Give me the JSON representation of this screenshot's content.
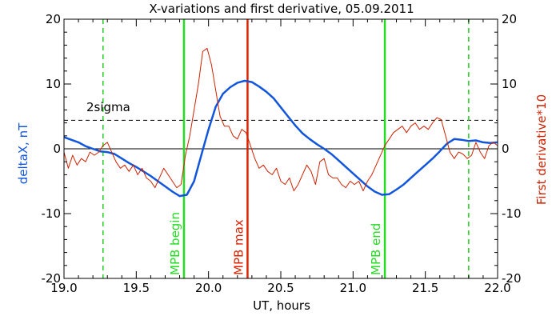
{
  "chart_data": {
    "type": "line",
    "title": "X-variations and first derivative, 05.09.2011",
    "xlabel": "UT, hours",
    "ylabel_left": "deltaX, nT",
    "ylabel_right": "First derivative*10",
    "xlim": [
      19.0,
      22.0
    ],
    "ylim_left": [
      -20,
      20
    ],
    "ylim_right": [
      -20,
      20
    ],
    "x_ticks": [
      19.0,
      19.5,
      20.0,
      20.5,
      21.0,
      21.5,
      22.0
    ],
    "x_tick_labels": [
      "19.0",
      "19.5",
      "20.0",
      "20.5",
      "21.0",
      "21.5",
      "22.0"
    ],
    "y_ticks": [
      -20,
      -10,
      0,
      10,
      20
    ],
    "y_tick_labels": [
      "-20",
      "-10",
      "0",
      "10",
      "20"
    ],
    "threshold": {
      "label": "2sigma",
      "value": 4.4
    },
    "vertical_markers": [
      {
        "x": 19.27,
        "color": "#22cc22",
        "style": "dashed",
        "label": ""
      },
      {
        "x": 19.83,
        "color": "#22dd22",
        "style": "solid",
        "label": "MPB begin"
      },
      {
        "x": 20.27,
        "color": "#dd2200",
        "style": "solid",
        "label": "MPB max"
      },
      {
        "x": 21.22,
        "color": "#22dd22",
        "style": "solid",
        "label": "MPB end"
      },
      {
        "x": 21.8,
        "color": "#22cc22",
        "style": "dashed",
        "label": ""
      }
    ],
    "series": [
      {
        "axis": "left",
        "color": "#1155dd",
        "x": [
          19.0,
          19.05,
          19.1,
          19.15,
          19.2,
          19.25,
          19.3,
          19.35,
          19.4,
          19.45,
          19.5,
          19.55,
          19.6,
          19.65,
          19.7,
          19.75,
          19.8,
          19.85,
          19.9,
          19.95,
          20.0,
          20.05,
          20.1,
          20.15,
          20.2,
          20.25,
          20.3,
          20.35,
          20.4,
          20.45,
          20.5,
          20.55,
          20.6,
          20.65,
          20.7,
          20.75,
          20.8,
          20.85,
          20.9,
          20.95,
          21.0,
          21.05,
          21.1,
          21.15,
          21.2,
          21.25,
          21.3,
          21.35,
          21.4,
          21.45,
          21.5,
          21.55,
          21.6,
          21.65,
          21.7,
          21.75,
          21.8,
          21.85,
          21.9,
          21.95,
          22.0
        ],
        "values": [
          1.8,
          1.4,
          1.0,
          0.4,
          0.0,
          -0.4,
          -0.5,
          -0.8,
          -1.5,
          -2.2,
          -2.8,
          -3.5,
          -4.2,
          -5.0,
          -5.8,
          -6.6,
          -7.3,
          -7.1,
          -5.0,
          -1.0,
          3.0,
          6.5,
          8.5,
          9.5,
          10.2,
          10.5,
          10.3,
          9.6,
          8.8,
          7.8,
          6.4,
          5.0,
          3.6,
          2.4,
          1.5,
          0.7,
          0.0,
          -0.8,
          -1.8,
          -2.8,
          -3.8,
          -4.8,
          -5.8,
          -6.6,
          -7.1,
          -7.0,
          -6.3,
          -5.5,
          -4.5,
          -3.5,
          -2.5,
          -1.5,
          -0.4,
          0.8,
          1.5,
          1.4,
          1.2,
          1.3,
          1.0,
          0.9,
          1.0
        ]
      },
      {
        "axis": "right",
        "color": "#cc2200",
        "x": [
          19.0,
          19.03,
          19.06,
          19.09,
          19.12,
          19.15,
          19.18,
          19.21,
          19.24,
          19.27,
          19.3,
          19.33,
          19.36,
          19.39,
          19.42,
          19.45,
          19.48,
          19.51,
          19.54,
          19.57,
          19.6,
          19.63,
          19.66,
          19.69,
          19.72,
          19.75,
          19.78,
          19.81,
          19.84,
          19.87,
          19.9,
          19.93,
          19.96,
          19.99,
          20.02,
          20.05,
          20.08,
          20.11,
          20.14,
          20.17,
          20.2,
          20.23,
          20.26,
          20.29,
          20.32,
          20.35,
          20.38,
          20.41,
          20.44,
          20.47,
          20.5,
          20.53,
          20.56,
          20.59,
          20.62,
          20.65,
          20.68,
          20.71,
          20.74,
          20.77,
          20.8,
          20.83,
          20.86,
          20.89,
          20.92,
          20.95,
          20.98,
          21.01,
          21.04,
          21.07,
          21.1,
          21.13,
          21.16,
          21.19,
          21.22,
          21.25,
          21.28,
          21.31,
          21.34,
          21.37,
          21.4,
          21.43,
          21.46,
          21.49,
          21.52,
          21.55,
          21.58,
          21.61,
          21.64,
          21.67,
          21.7,
          21.73,
          21.76,
          21.79,
          21.82,
          21.85,
          21.88,
          21.91,
          21.94,
          21.97,
          22.0
        ],
        "values": [
          -0.5,
          -3.0,
          -1.0,
          -2.5,
          -1.5,
          -2.0,
          -0.5,
          -1.0,
          -0.5,
          0.5,
          1.0,
          -0.5,
          -2.0,
          -3.0,
          -2.5,
          -3.5,
          -2.5,
          -4.0,
          -3.0,
          -4.5,
          -5.0,
          -6.0,
          -4.5,
          -3.0,
          -4.0,
          -5.0,
          -6.0,
          -5.5,
          -1.0,
          2.0,
          6.0,
          10.0,
          15.0,
          15.5,
          13.0,
          9.0,
          5.0,
          3.5,
          3.5,
          2.0,
          1.5,
          3.0,
          2.5,
          0.5,
          -1.5,
          -3.0,
          -2.5,
          -3.5,
          -4.0,
          -3.0,
          -5.0,
          -5.5,
          -4.5,
          -6.5,
          -5.5,
          -4.0,
          -2.5,
          -3.5,
          -5.5,
          -2.0,
          -1.5,
          -4.0,
          -4.5,
          -4.5,
          -5.5,
          -6.0,
          -5.0,
          -5.5,
          -5.0,
          -6.5,
          -5.0,
          -4.0,
          -2.5,
          -1.0,
          0.5,
          1.5,
          2.5,
          3.0,
          3.5,
          2.5,
          3.5,
          4.0,
          3.0,
          3.5,
          3.0,
          4.0,
          4.8,
          4.5,
          2.0,
          -0.5,
          -1.5,
          -0.5,
          -0.8,
          -1.5,
          -1.0,
          1.0,
          -0.5,
          -1.5,
          0.5,
          1.0,
          0.5
        ]
      }
    ]
  }
}
